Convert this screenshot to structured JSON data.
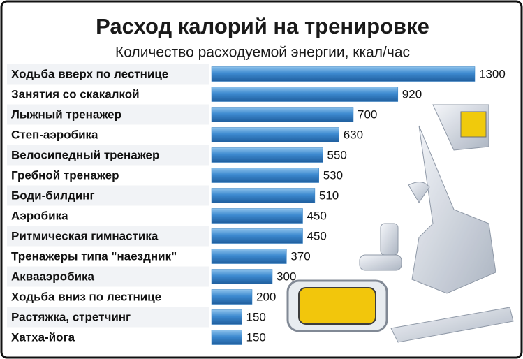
{
  "chart_data": {
    "type": "bar",
    "orientation": "horizontal",
    "title": "Расход калорий на тренировке",
    "subtitle": "Количество расходуемой энергии, ккал/час",
    "categories": [
      "Ходьба вверх по лестнице",
      "Занятия со скакалкой",
      "Лыжный тренажер",
      "Степ-аэробика",
      "Велосипедный тренажер",
      "Гребной тренажер",
      "Боди-билдинг",
      "Аэробика",
      "Ритмическая гимнастика",
      "Тренажеры типа \"наездник\"",
      "Аквааэробика",
      "Ходьба вниз по лестнице",
      "Растяжка, стретчинг",
      "Хатха-йога"
    ],
    "values": [
      1300,
      920,
      700,
      630,
      550,
      530,
      510,
      450,
      450,
      370,
      300,
      200,
      150,
      150
    ],
    "color": "#2f7cc0"
  }
}
